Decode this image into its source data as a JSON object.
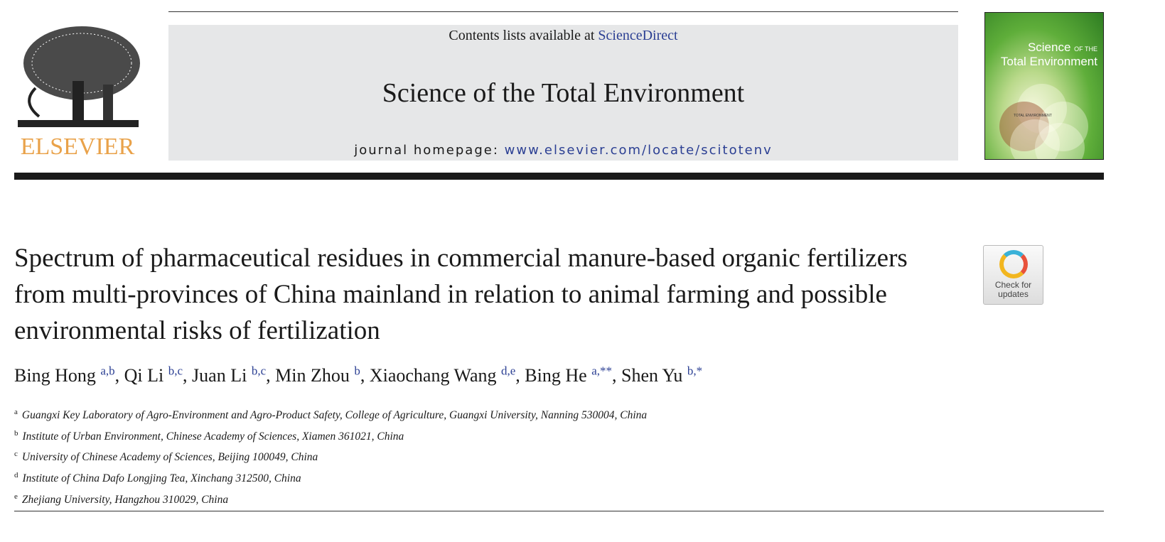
{
  "header": {
    "contents_prefix": "Contents lists available at ",
    "contents_link": "ScienceDirect",
    "journal_title": "Science of the Total Environment",
    "homepage_prefix": "journal homepage: ",
    "homepage_link": "www.elsevier.com/locate/scitotenv",
    "publisher_logo": "ELSEVIER",
    "cover_title_1": "Science",
    "cover_title_of": "OF THE",
    "cover_title_2": "Total Environment",
    "cover_center": "TOTAL ENVIRONMENT"
  },
  "badge": {
    "line1": "Check for",
    "line2": "updates"
  },
  "article": {
    "title": "Spectrum of pharmaceutical residues in commercial manure-based organic fertilizers from multi-provinces of China mainland in relation to animal farming and possible environmental risks of fertilization",
    "authors": [
      {
        "name": "Bing Hong",
        "sup": "a,b"
      },
      {
        "name": "Qi Li",
        "sup": "b,c"
      },
      {
        "name": "Juan Li",
        "sup": "b,c"
      },
      {
        "name": "Min Zhou",
        "sup": "b"
      },
      {
        "name": "Xiaochang Wang",
        "sup": "d,e"
      },
      {
        "name": "Bing He",
        "sup": "a,**"
      },
      {
        "name": "Shen Yu",
        "sup": "b,*"
      }
    ],
    "affiliations": [
      {
        "key": "a",
        "text": "Guangxi Key Laboratory of Agro-Environment and Agro-Product Safety, College of Agriculture, Guangxi University, Nanning 530004, China"
      },
      {
        "key": "b",
        "text": "Institute of Urban Environment, Chinese Academy of Sciences, Xiamen 361021, China"
      },
      {
        "key": "c",
        "text": "University of Chinese Academy of Sciences, Beijing 100049, China"
      },
      {
        "key": "d",
        "text": "Institute of China Dafo Longjing Tea, Xinchang 312500, China"
      },
      {
        "key": "e",
        "text": "Zhejiang University, Hangzhou 310029, China"
      }
    ]
  }
}
